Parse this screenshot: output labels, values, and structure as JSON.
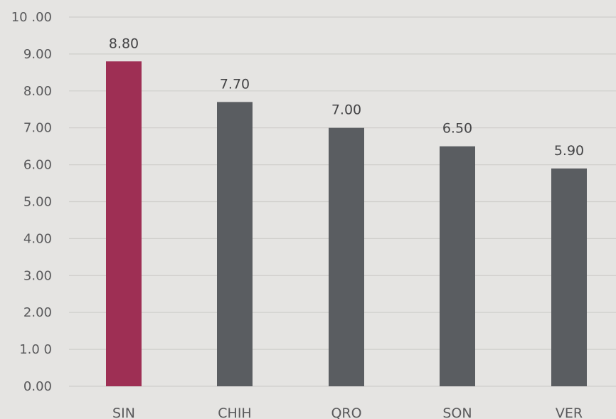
{
  "chart_data": {
    "type": "bar",
    "categories": [
      "SIN",
      "CHIH",
      "QRO",
      "SON",
      "VER"
    ],
    "values": [
      8.8,
      7.7,
      7.0,
      6.5,
      5.9
    ],
    "value_labels": [
      "8.80",
      "7.70",
      "7.00",
      "6.50",
      "5.90"
    ],
    "y_tick_values": [
      0,
      1,
      2,
      3,
      4,
      5,
      6,
      7,
      8,
      9,
      10
    ],
    "y_tick_labels": [
      "0.00",
      "1.0 0",
      "2.00",
      "3.00",
      "4.00",
      "5.00",
      "6.00",
      "7.00",
      "8.00",
      "9.00",
      "10 .00"
    ],
    "ylim": [
      0,
      10
    ],
    "grid": true,
    "legend": "none",
    "colors": {
      "highlight": "#9e2f54",
      "default": "#5a5d61",
      "background": "#e5e4e2",
      "grid": "#cfcecb"
    },
    "highlight_categories": [
      "SIN"
    ]
  }
}
